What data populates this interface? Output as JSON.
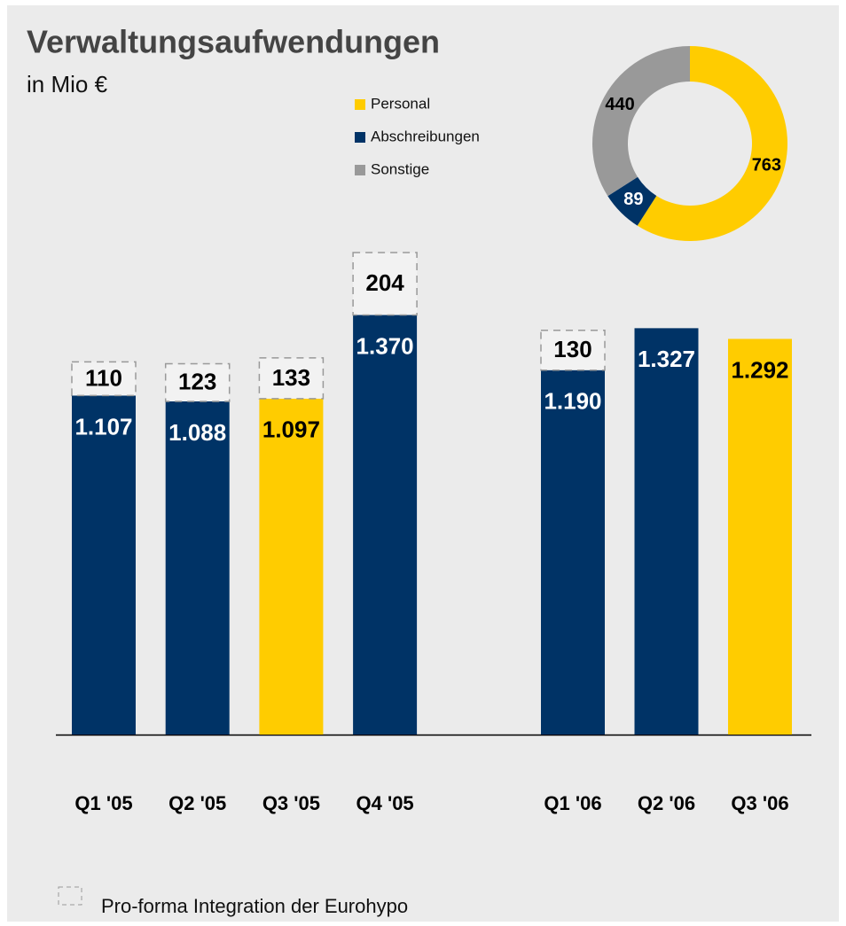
{
  "chart_data": [
    {
      "type": "bar",
      "stacked": true,
      "title": "Verwaltungsaufwendungen",
      "subtitle": "in Mio €",
      "categories": [
        "Q1 '05",
        "Q2 '05",
        "Q3 '05",
        "Q4 '05",
        "Q1 '06",
        "Q2 '06",
        "Q3 '06"
      ],
      "series": [
        {
          "values": [
            1107,
            1088,
            1097,
            1370,
            1190,
            1327,
            1292
          ],
          "value_labels": [
            "1.107",
            "1.088",
            "1.097",
            "1.370",
            "1.190",
            "1.327",
            "1.292"
          ],
          "colors": [
            "#003366",
            "#003366",
            "#ffcc00",
            "#003366",
            "#003366",
            "#003366",
            "#ffcc00"
          ]
        },
        {
          "name": "Pro-forma Integration der Eurohypo",
          "style": "dashed",
          "values": [
            110,
            123,
            133,
            204,
            130,
            null,
            null
          ]
        }
      ]
    },
    {
      "type": "pie",
      "donut": true,
      "categories": [
        "Personal",
        "Abschreibungen",
        "Sonstige"
      ],
      "values": [
        763,
        89,
        440
      ],
      "colors": [
        "#ffcc00",
        "#003366",
        "#999999"
      ]
    }
  ]
}
